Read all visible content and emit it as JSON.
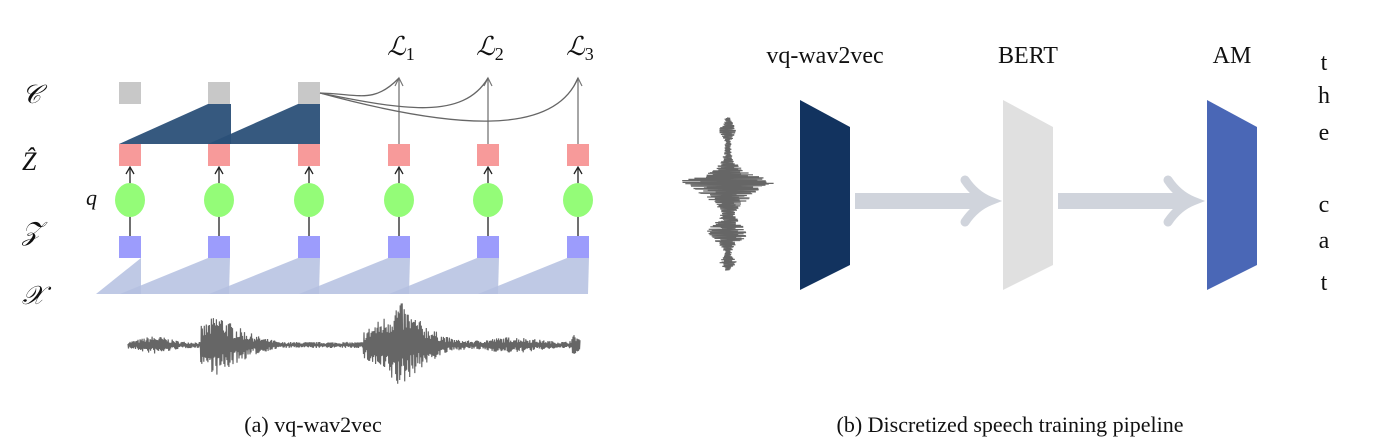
{
  "panel_a": {
    "caption": "(a) vq-wav2vec",
    "row_labels": {
      "c": "𝒞",
      "zhat": "Ẑ",
      "z": "𝒵",
      "x": "𝒳",
      "q": "q"
    },
    "losses": [
      "ℒ",
      "ℒ",
      "ℒ"
    ],
    "loss_subscripts": [
      "1",
      "2",
      "3"
    ],
    "colors": {
      "context": "#c8c8c8",
      "context_net": "#2b5078",
      "zhat": "#f79a9a",
      "quantizer": "#94fc78",
      "z": "#9c9cfc",
      "encoder": "#b4c0e0",
      "waveform": "#666666"
    }
  },
  "panel_b": {
    "caption": "(b) Discretized speech training pipeline",
    "blocks": [
      {
        "label": "vq-wav2vec",
        "color": "#12335f"
      },
      {
        "label": "BERT",
        "color": "#e0e0e0"
      },
      {
        "label": "AM",
        "color": "#4a67b6"
      }
    ],
    "output_letters": [
      "t",
      "h",
      "e",
      "c",
      "a",
      "t"
    ],
    "arrow_color": "#d0d4dc"
  }
}
